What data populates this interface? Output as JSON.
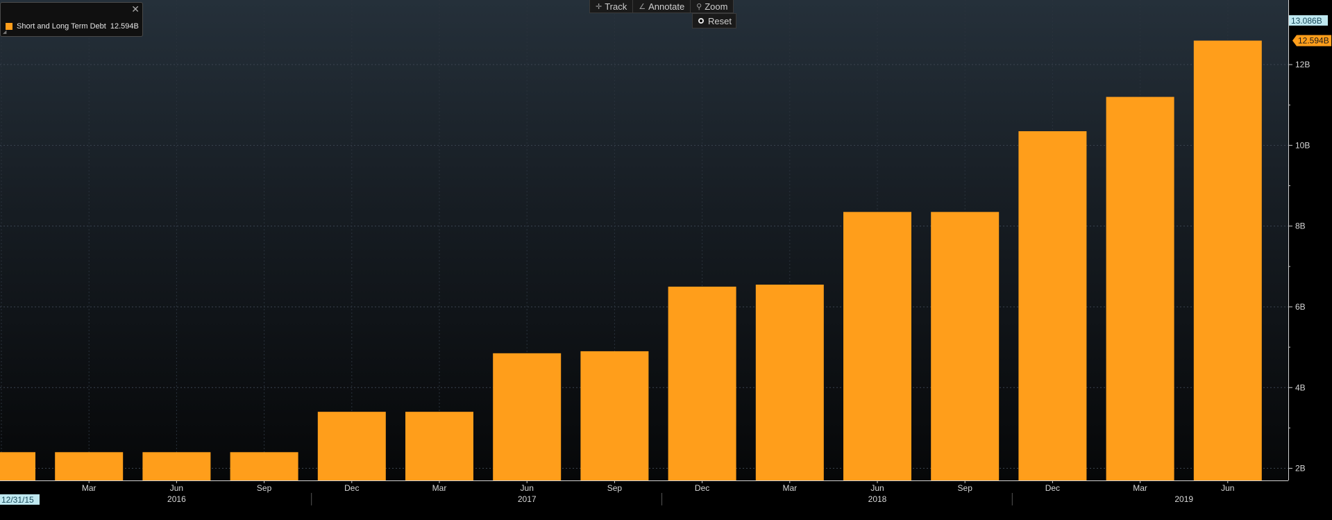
{
  "toolbar": {
    "track_label": "Track",
    "annotate_label": "Annotate",
    "zoom_label": "Zoom",
    "reset_label": "Reset"
  },
  "legend": {
    "series_label": "Short and Long Term Debt",
    "value_label": "12.594B"
  },
  "axis": {
    "top_marker": "13.086B",
    "last_value_marker": "12.594B",
    "start_date_label": "12/31/15"
  },
  "colors": {
    "bar": "#ff9e1b",
    "top_marker_bg": "#bfe8f0",
    "last_marker_bg": "#ff9e1b"
  },
  "chart_data": {
    "type": "bar",
    "categories": [
      "Dec 2015",
      "Mar 2016",
      "Jun 2016",
      "Sep 2016",
      "Dec 2016",
      "Mar 2017",
      "Jun 2017",
      "Sep 2017",
      "Dec 2017",
      "Mar 2018",
      "Jun 2018",
      "Sep 2018",
      "Dec 2018",
      "Mar 2019",
      "Jun 2019"
    ],
    "series": [
      {
        "name": "Short and Long Term Debt",
        "values": [
          2.4,
          2.4,
          2.4,
          2.4,
          3.4,
          3.4,
          4.85,
          4.9,
          6.5,
          6.55,
          8.35,
          8.35,
          10.35,
          11.2,
          12.594
        ]
      }
    ],
    "unit": "B",
    "ylim": [
      1.7,
      13.6
    ],
    "yticks": [
      2,
      4,
      6,
      8,
      10,
      12
    ],
    "ytick_labels": [
      "2B",
      "4B",
      "6B",
      "8B",
      "10B",
      "12B"
    ],
    "xtick_labels": [
      "Mar",
      "Jun",
      "Sep",
      "Dec",
      "Mar",
      "Jun",
      "Sep",
      "Dec",
      "Mar",
      "Jun",
      "Sep",
      "Dec",
      "Mar",
      "Jun"
    ],
    "year_labels": [
      "2016",
      "2017",
      "2018",
      "2019"
    ],
    "grid": true
  }
}
